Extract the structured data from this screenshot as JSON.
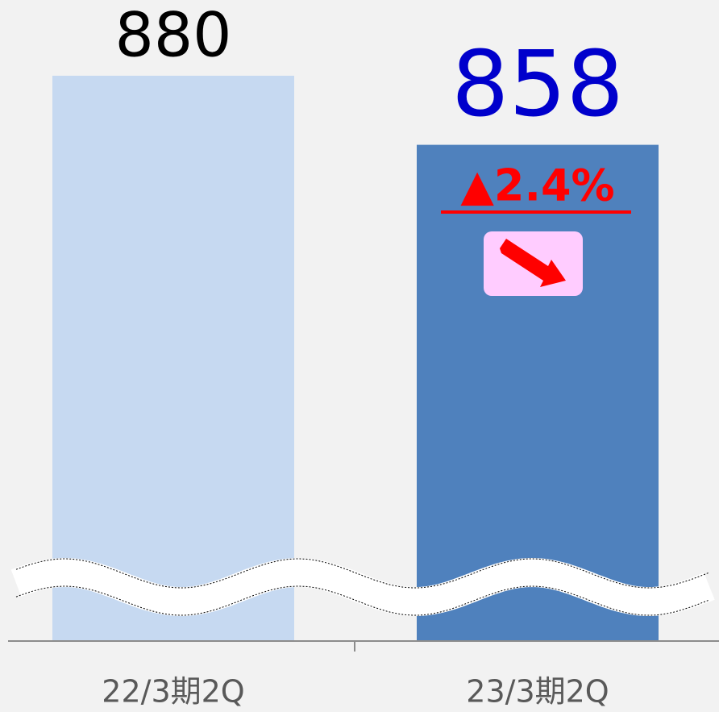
{
  "chart_data": {
    "type": "bar",
    "categories": [
      "22/3期2Q",
      "23/3期2Q"
    ],
    "values": [
      880,
      858
    ],
    "colors": [
      "#c6d9f1",
      "#4f81bd"
    ],
    "label_colors": [
      "#000000",
      "#0000cc"
    ],
    "ylim": [
      700,
      900
    ],
    "annotation": "▲2.4%",
    "annotation_color": "#ff0000",
    "axis_break": true
  }
}
